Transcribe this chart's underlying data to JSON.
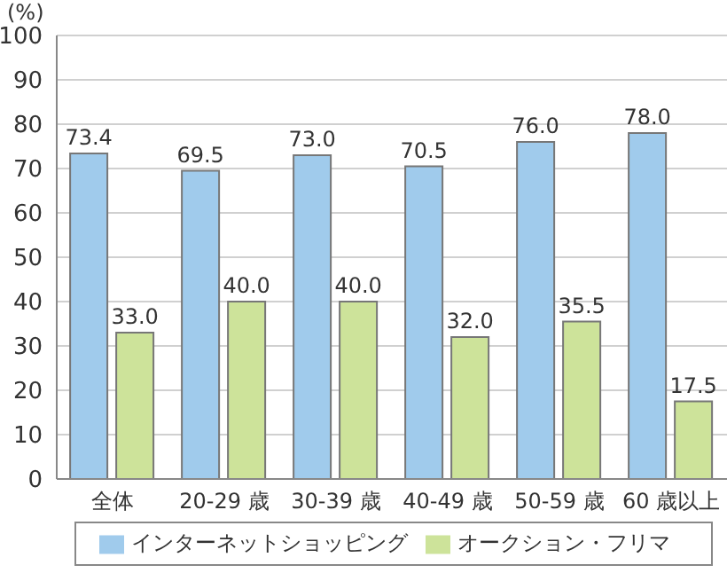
{
  "chart_data": {
    "type": "bar",
    "ylabel": "(%)",
    "categories": [
      "全体",
      "20-29 歳",
      "30-39 歳",
      "40-49 歳",
      "50-59 歳",
      "60 歳以上"
    ],
    "series": [
      {
        "name": "インターネットショッピング",
        "color": "#a0cbec",
        "values": [
          73.4,
          69.5,
          73,
          70.5,
          76,
          78
        ],
        "value_labels": [
          "73.4",
          "69.5",
          "73.0",
          "70.5",
          "76.0",
          "78.0"
        ]
      },
      {
        "name": "オークション・フリマ",
        "color": "#cde39a",
        "values": [
          33,
          40,
          40,
          32,
          35.5,
          17.5
        ],
        "value_labels": [
          "33.0",
          "40.0",
          "40.0",
          "32.0",
          "35.5",
          "17.5"
        ]
      }
    ],
    "ylim": [
      0,
      100
    ],
    "yticks": [
      0,
      10,
      20,
      30,
      40,
      50,
      60,
      70,
      80,
      90,
      100
    ],
    "grid": "y",
    "legend": "bottom"
  }
}
